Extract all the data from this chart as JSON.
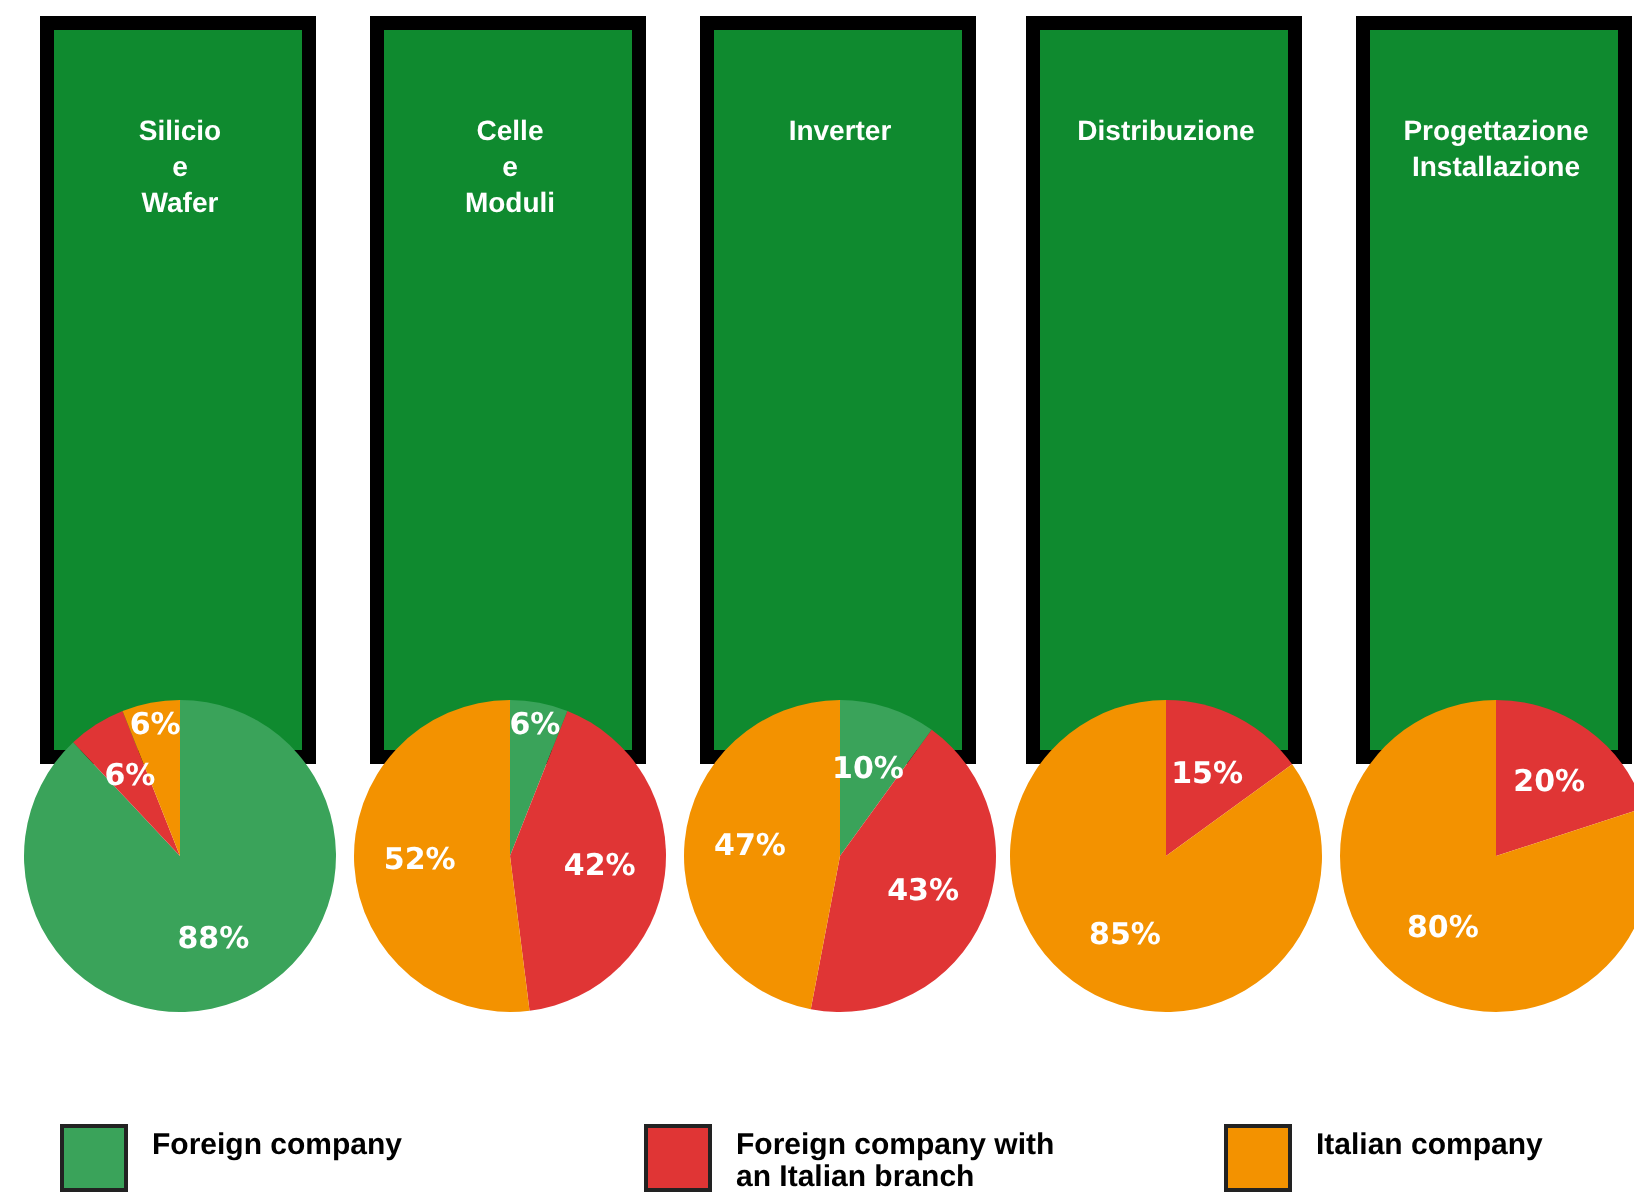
{
  "chart_data": [
    {
      "type": "pie",
      "title": "Silicio\ne\nWafer",
      "categories": [
        "Foreign company",
        "Foreign company with an Italian branch",
        "Italian company"
      ],
      "values": [
        88,
        6,
        6
      ],
      "colors": [
        "#3aa35a",
        "#e03535",
        "#f39200"
      ],
      "value_labels": [
        "88%",
        "6%",
        "6%"
      ],
      "legend": "bottom"
    },
    {
      "type": "pie",
      "title": "Celle\ne\nModuli",
      "categories": [
        null,
        null,
        null
      ],
      "values": [
        6,
        42,
        52
      ],
      "colors": [
        "#3aa35a",
        "#e03535",
        "#f39200"
      ],
      "value_labels": [
        "6%",
        "42%",
        "52%"
      ]
    },
    {
      "type": "pie",
      "title": "Inverter",
      "categories": [
        null,
        null,
        null
      ],
      "values": [
        10,
        43,
        47
      ],
      "colors": [
        "#3aa35a",
        "#e03535",
        "#f39200"
      ],
      "value_labels": [
        "10%",
        "43%",
        "47%"
      ]
    },
    {
      "type": "pie",
      "title": "Distribuzione",
      "categories": [
        null,
        null,
        null
      ],
      "values": [
        null,
        15,
        85
      ],
      "colors": [
        "#3aa35a",
        "#e03535",
        "#f39200"
      ],
      "value_labels": [
        null,
        "15%",
        "85%"
      ]
    },
    {
      "type": "pie",
      "title": "Progettazione\nInstallazione",
      "categories": [
        null,
        null,
        null
      ],
      "values": [
        null,
        20,
        80
      ],
      "colors": [
        "#3aa35a",
        "#e03535",
        "#f39200"
      ],
      "value_labels": [
        null,
        "20%",
        "80%"
      ]
    }
  ]
}
